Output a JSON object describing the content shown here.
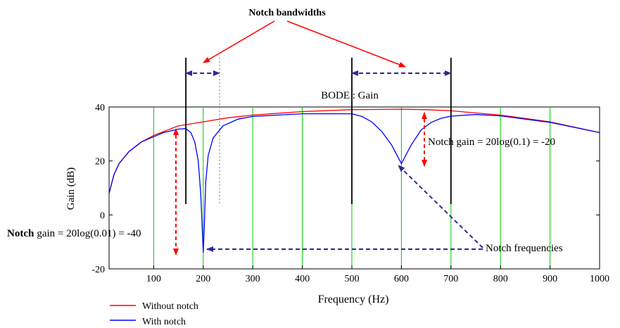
{
  "chart_data": {
    "type": "line",
    "title": "BODE : Gain",
    "xlabel": "Frequency (Hz)",
    "ylabel": "Gain (dB)",
    "xlim": [
      10,
      1000
    ],
    "ylim": [
      -20,
      40
    ],
    "xticks": [
      100,
      200,
      300,
      400,
      500,
      600,
      700,
      800,
      900,
      1000
    ],
    "yticks": [
      -20,
      0,
      20,
      40
    ],
    "grid": "vertical green gridlines every 100 Hz",
    "legend_position": "bottom-left, below plot",
    "series": [
      {
        "name": "Without notch",
        "color": "#ff0000",
        "x": [
          10,
          20,
          30,
          50,
          75,
          100,
          150,
          200,
          250,
          300,
          400,
          500,
          600,
          650,
          700,
          800,
          900,
          1000
        ],
        "y": [
          8,
          15,
          19,
          23.5,
          27,
          29.5,
          33,
          34.5,
          36,
          37,
          38.3,
          39,
          39.2,
          39,
          38.6,
          37,
          34.5,
          30.5
        ]
      },
      {
        "name": "With notch",
        "color": "#0000ff",
        "x": [
          10,
          20,
          30,
          50,
          75,
          100,
          120,
          150,
          165,
          175,
          183,
          190,
          195,
          198,
          200,
          202,
          205,
          210,
          220,
          240,
          270,
          300,
          400,
          500,
          520,
          540,
          560,
          580,
          590,
          600,
          610,
          620,
          640,
          660,
          680,
          700,
          750,
          800,
          900,
          1000
        ],
        "y": [
          8,
          15,
          19,
          23.5,
          27,
          29,
          30.5,
          31.8,
          32,
          30.5,
          27,
          20,
          8,
          -5,
          -14,
          -5,
          12,
          22,
          28.5,
          33,
          35.5,
          36.5,
          37.5,
          37.5,
          36.5,
          34.5,
          31,
          26,
          22.5,
          19,
          22.5,
          26,
          31.5,
          34.3,
          35.8,
          36.6,
          37.2,
          36.7,
          34.3,
          30.5
        ]
      }
    ],
    "annotations": {
      "bandwidth_label": "Notch bandwidths",
      "notch_gain_high": "Notch gain = 20log(0.1) = -20",
      "notch_gain_low": "gain = 20log(0.01) = -40",
      "notch_gain_low_bold": "Notch",
      "notch_frequencies": "Notch frequencies"
    }
  },
  "colors": {
    "without_notch": "#ff0000",
    "with_notch": "#0000ff",
    "grid": "#00c800",
    "annotation_red": "#ff0000",
    "annotation_dashed": "#2a2a9a"
  }
}
